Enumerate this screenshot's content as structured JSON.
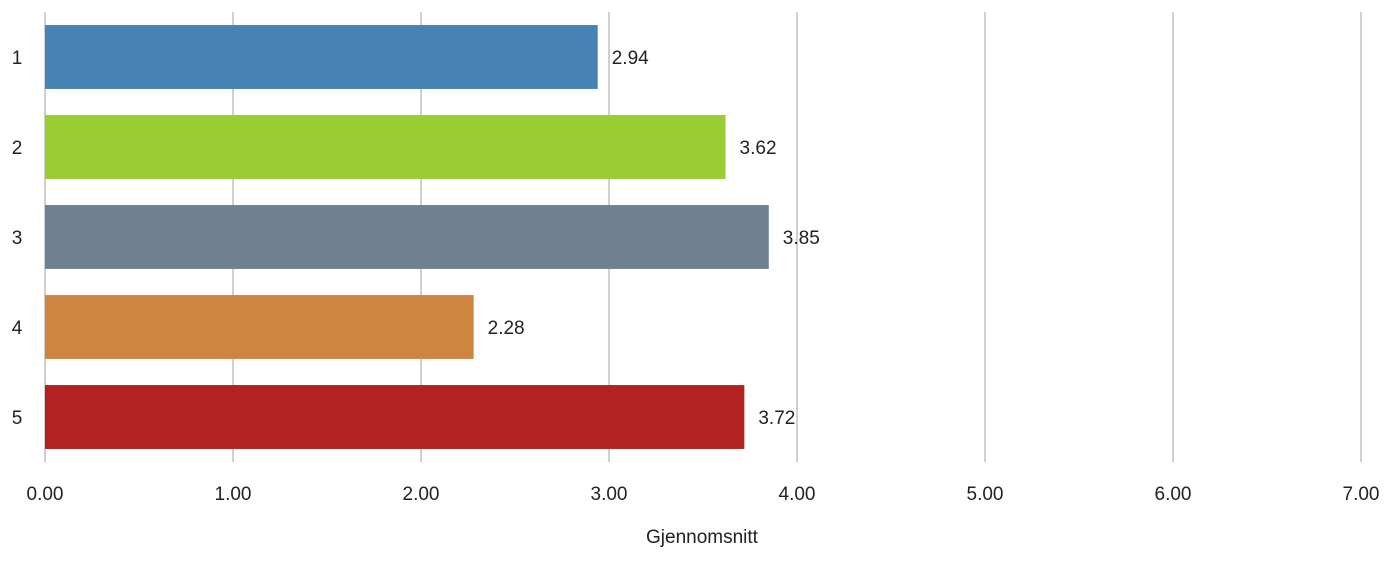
{
  "chart_data": {
    "type": "bar",
    "orientation": "horizontal",
    "categories": [
      "1",
      "2",
      "3",
      "4",
      "5"
    ],
    "values": [
      2.94,
      3.62,
      3.85,
      2.28,
      3.72
    ],
    "value_labels": [
      "2.94",
      "3.62",
      "3.85",
      "2.28",
      "3.72"
    ],
    "bar_colors": [
      "#4682b4",
      "#9acd32",
      "#708090",
      "#cd853f",
      "#b22222"
    ],
    "title": "",
    "xlabel": "Gjennomsnitt",
    "ylabel": "",
    "xlim": [
      0,
      7
    ],
    "xticks": [
      "0.00",
      "1.00",
      "2.00",
      "3.00",
      "4.00",
      "5.00",
      "6.00",
      "7.00"
    ],
    "grid": "vertical",
    "legend": "none"
  }
}
